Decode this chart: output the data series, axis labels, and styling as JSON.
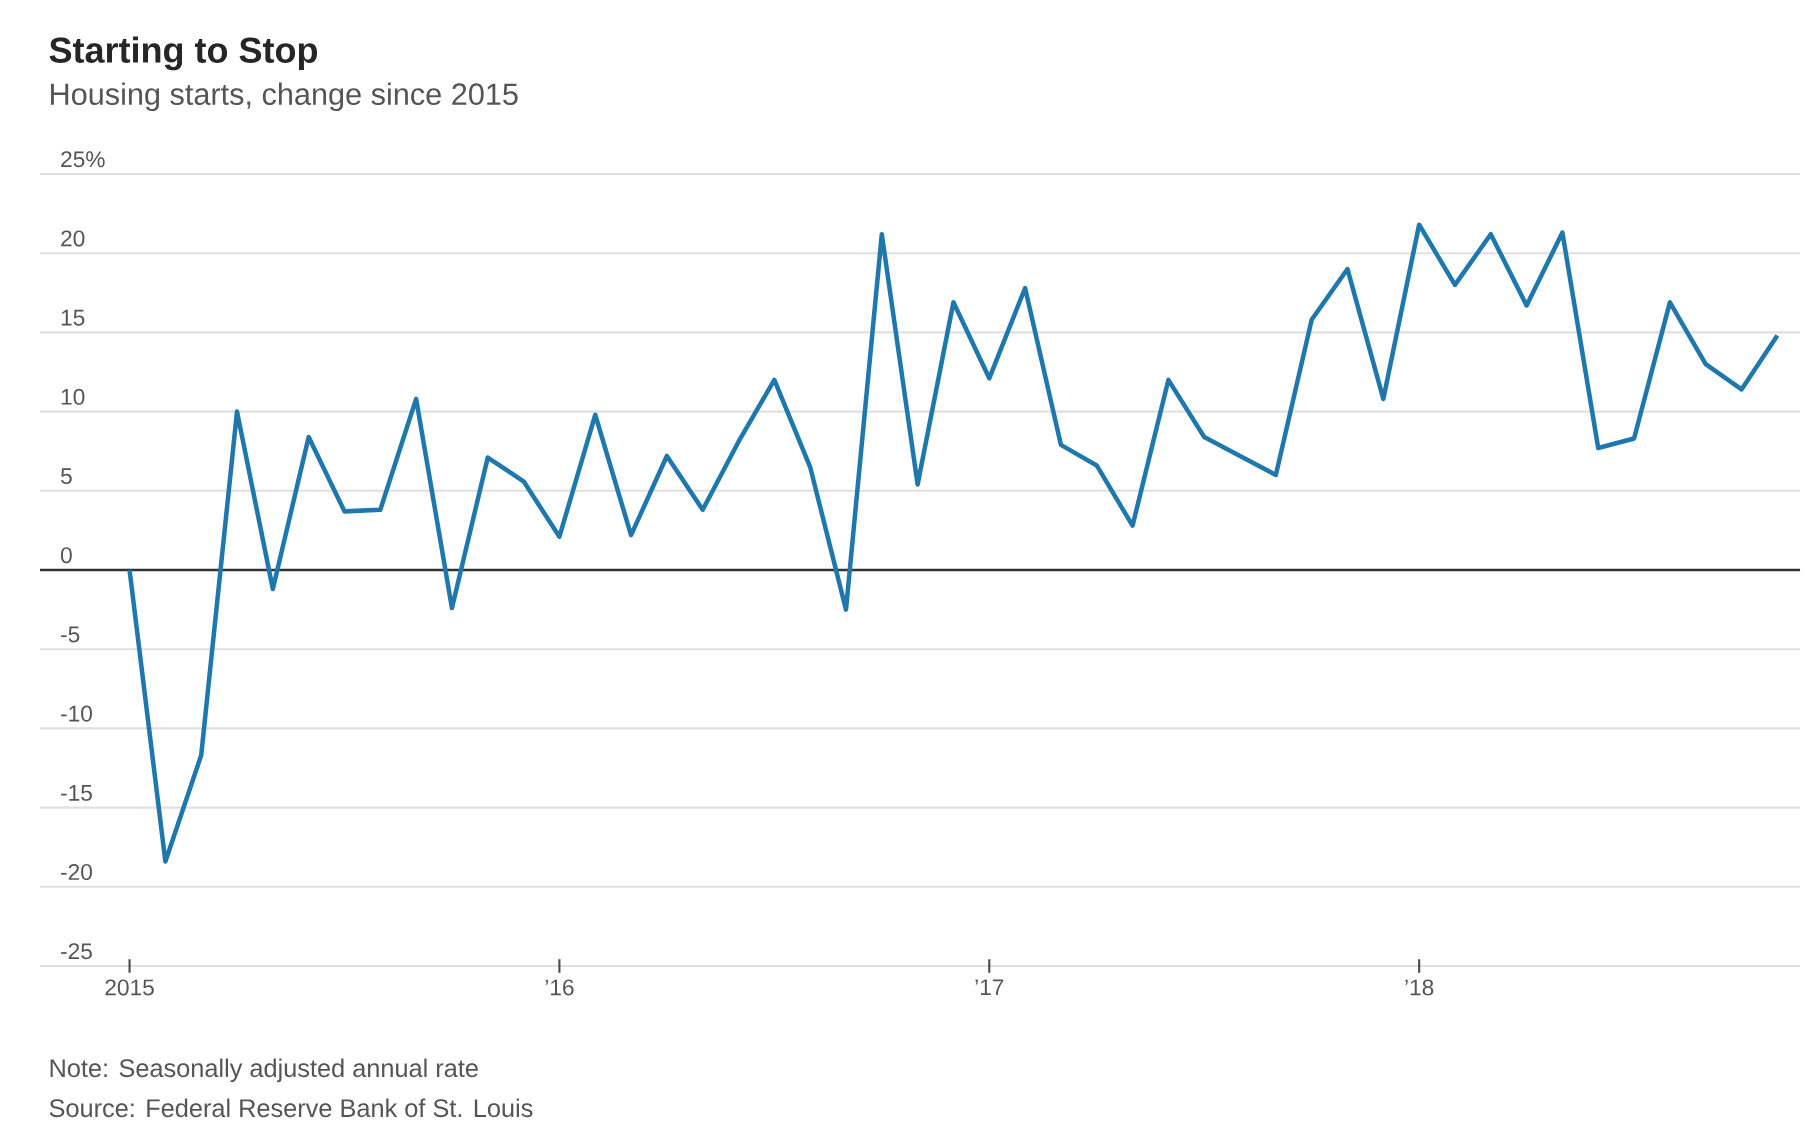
{
  "chart_data": {
    "type": "line",
    "title": "Starting to Stop",
    "subtitle": "Housing starts, change since 2015",
    "annotations": [
      "Note: Seasonally adjusted annual rate",
      "Source: Federal Reserve Bank of St. Louis"
    ],
    "x": [
      "2015-01",
      "2015-02",
      "2015-03",
      "2015-04",
      "2015-05",
      "2015-06",
      "2015-07",
      "2015-08",
      "2015-09",
      "2015-10",
      "2015-11",
      "2015-12",
      "2016-01",
      "2016-02",
      "2016-03",
      "2016-04",
      "2016-05",
      "2016-06",
      "2016-07",
      "2016-08",
      "2016-09",
      "2016-10",
      "2016-11",
      "2016-12",
      "2017-01",
      "2017-02",
      "2017-03",
      "2017-04",
      "2017-05",
      "2017-06",
      "2017-07",
      "2017-08",
      "2017-09",
      "2017-10",
      "2017-11",
      "2017-12",
      "2018-01",
      "2018-02",
      "2018-03",
      "2018-04",
      "2018-05",
      "2018-06",
      "2018-07",
      "2018-08",
      "2018-09",
      "2018-10",
      "2018-11"
    ],
    "series": [
      {
        "color": "#1f78ad",
        "values": [
          0,
          -18.4,
          -11.7,
          10.0,
          -1.2,
          8.4,
          3.7,
          3.8,
          10.8,
          -2.4,
          7.1,
          5.6,
          2.1,
          9.8,
          2.2,
          7.2,
          3.8,
          8.1,
          12.0,
          6.5,
          -2.5,
          21.2,
          5.4,
          16.9,
          12.1,
          17.8,
          7.9,
          6.6,
          2.8,
          12.0,
          8.4,
          7.2,
          6.0,
          15.8,
          19.0,
          10.8,
          21.8,
          18.0,
          21.2,
          16.7,
          21.3,
          7.7,
          8.3,
          16.9,
          13.0,
          11.4,
          14.8
        ]
      }
    ],
    "xlim": [
      "2014-10-16",
      "2018-11-20"
    ],
    "xticks": [
      {
        "value": "2015-01",
        "label": "2015"
      },
      {
        "value": "2016-01",
        "label": "’16"
      },
      {
        "value": "2017-01",
        "label": "’17"
      },
      {
        "value": "2018-01",
        "label": "’18"
      }
    ],
    "ylim": [
      -25,
      25
    ],
    "yticks": [
      {
        "value": -25,
        "label": "-25"
      },
      {
        "value": -20,
        "label": "-20"
      },
      {
        "value": -15,
        "label": "-15"
      },
      {
        "value": -10,
        "label": "-10"
      },
      {
        "value": -5,
        "label": "-5"
      },
      {
        "value": 0,
        "label": "0"
      },
      5,
      10,
      15,
      20,
      {
        "value": 25,
        "label": "25%"
      }
    ],
    "ref_lines": [
      {
        "axis": "y",
        "value": 0,
        "color": "#333333"
      }
    ],
    "grid": "y",
    "marker": "none",
    "line_style": "solid"
  }
}
